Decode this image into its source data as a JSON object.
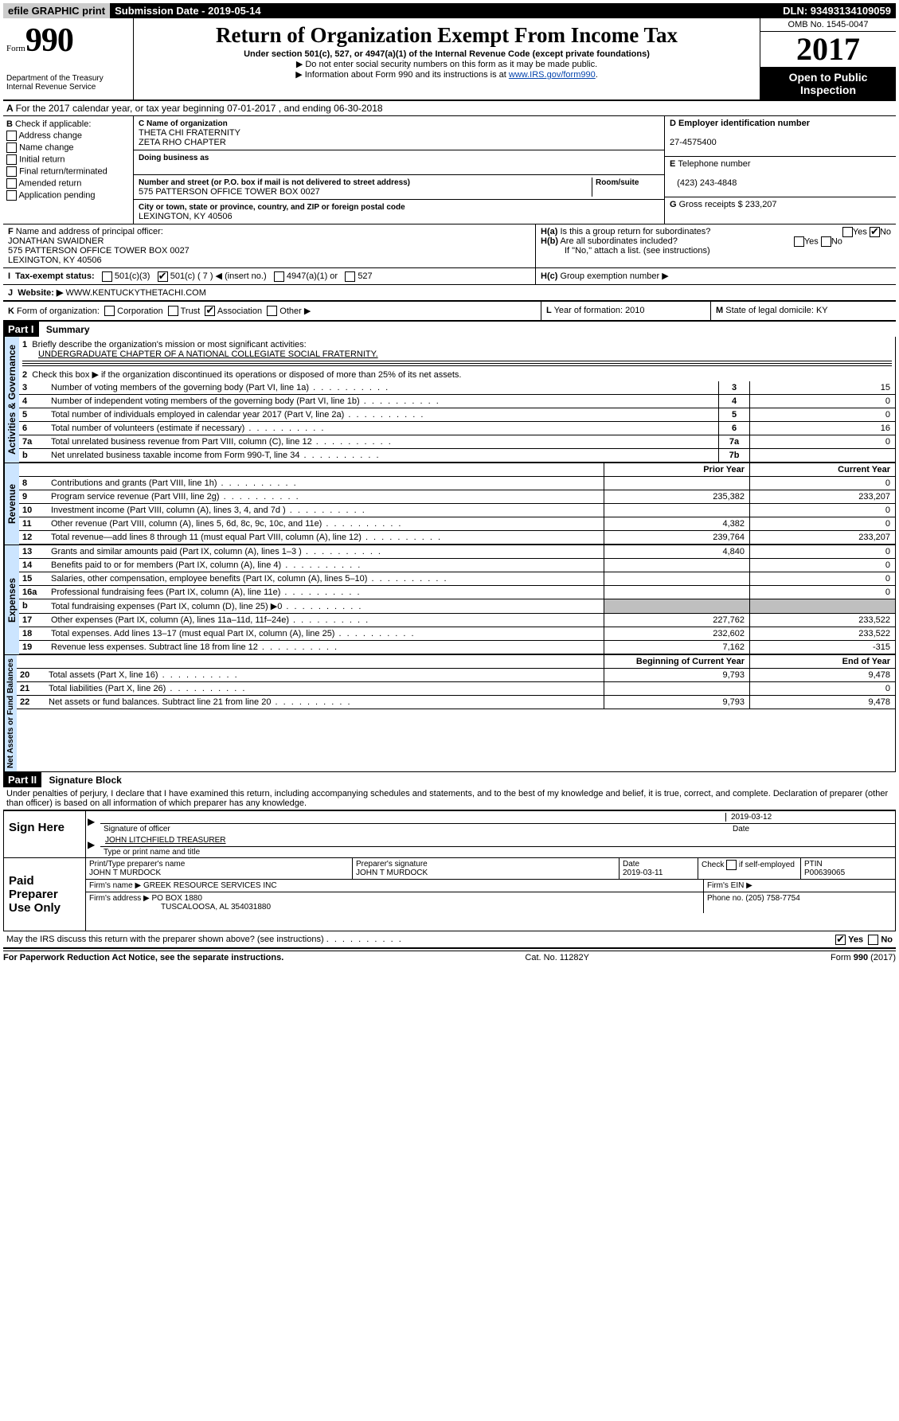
{
  "top": {
    "efile": "efile GRAPHIC print",
    "submission": "Submission Date - 2019-05-14",
    "dln": "DLN: 93493134109059"
  },
  "header": {
    "form_label": "Form",
    "form_number": "990",
    "dept": "Department of the Treasury",
    "irs": "Internal Revenue Service",
    "title": "Return of Organization Exempt From Income Tax",
    "subtitle": "Under section 501(c), 527, or 4947(a)(1) of the Internal Revenue Code (except private foundations)",
    "note1": "Do not enter social security numbers on this form as it may be made public.",
    "note2_pre": "Information about Form 990 and its instructions is at ",
    "note2_link": "www.IRS.gov/form990",
    "omb": "OMB No. 1545-0047",
    "year": "2017",
    "open": "Open to Public Inspection"
  },
  "section_a": "For the 2017 calendar year, or tax year beginning 07-01-2017   , and ending 06-30-2018",
  "box_b": {
    "label": "Check if applicable:",
    "items": [
      "Address change",
      "Name change",
      "Initial return",
      "Final return/terminated",
      "Amended return",
      "Application pending"
    ]
  },
  "box_c": {
    "name_label": "Name of organization",
    "name1": "THETA CHI FRATERNITY",
    "name2": "ZETA RHO CHAPTER",
    "dba_label": "Doing business as",
    "addr_label": "Number and street (or P.O. box if mail is not delivered to street address)",
    "room_label": "Room/suite",
    "addr": "575 PATTERSON OFFICE TOWER BOX 0027",
    "city_label": "City or town, state or province, country, and ZIP or foreign postal code",
    "city": "LEXINGTON, KY  40506"
  },
  "box_d": {
    "label": "Employer identification number",
    "value": "27-4575400"
  },
  "box_e": {
    "label": "Telephone number",
    "value": "(423) 243-4848"
  },
  "box_g": {
    "label": "Gross receipts $",
    "value": "233,207"
  },
  "box_f": {
    "label": "Name and address of principal officer:",
    "name": "JONATHAN SWAIDNER",
    "addr": "575 PATTERSON OFFICE TOWER BOX 0027",
    "city": "LEXINGTON, KY  40506"
  },
  "box_h": {
    "a": "Is this a group return for subordinates?",
    "b": "Are all subordinates included?",
    "note": "If \"No,\" attach a list. (see instructions)",
    "c": "Group exemption number ▶"
  },
  "box_i": {
    "label": "Tax-exempt status:",
    "opts": [
      "501(c)(3)",
      "501(c) ( 7 ) ◀ (insert no.)",
      "4947(a)(1) or",
      "527"
    ]
  },
  "box_j": {
    "label": "Website: ▶",
    "value": "WWW.KENTUCKYTHETACHI.COM"
  },
  "box_k": {
    "label": "Form of organization:",
    "opts": [
      "Corporation",
      "Trust",
      "Association",
      "Other ▶"
    ]
  },
  "box_l": {
    "label": "Year of formation:",
    "value": "2010"
  },
  "box_m": {
    "label": "State of legal domicile:",
    "value": "KY"
  },
  "parts": {
    "p1": {
      "num": "Part I",
      "title": "Summary"
    },
    "p2": {
      "num": "Part II",
      "title": "Signature Block"
    }
  },
  "vtabs": {
    "gov": "Activities & Governance",
    "rev": "Revenue",
    "exp": "Expenses",
    "net": "Net Assets or Fund Balances"
  },
  "summary": {
    "line1_label": "Briefly describe the organization's mission or most significant activities:",
    "line1_value": "UNDERGRADUATE CHAPTER OF A NATIONAL COLLEGIATE SOCIAL FRATERNITY.",
    "line2": "Check this box ▶        if the organization discontinued its operations or disposed of more than 25% of its net assets.",
    "lines_single": [
      {
        "n": "3",
        "d": "Number of voting members of the governing body (Part VI, line 1a)",
        "box": "3",
        "v": "15"
      },
      {
        "n": "4",
        "d": "Number of independent voting members of the governing body (Part VI, line 1b)",
        "box": "4",
        "v": "0"
      },
      {
        "n": "5",
        "d": "Total number of individuals employed in calendar year 2017 (Part V, line 2a)",
        "box": "5",
        "v": "0"
      },
      {
        "n": "6",
        "d": "Total number of volunteers (estimate if necessary)",
        "box": "6",
        "v": "16"
      },
      {
        "n": "7a",
        "d": "Total unrelated business revenue from Part VIII, column (C), line 12",
        "box": "7a",
        "v": "0"
      },
      {
        "n": "b",
        "d": "Net unrelated business taxable income from Form 990-T, line 34",
        "box": "7b",
        "v": ""
      }
    ],
    "col_headers": {
      "prior": "Prior Year",
      "current": "Current Year",
      "begin": "Beginning of Current Year",
      "end": "End of Year"
    },
    "revenue": [
      {
        "n": "8",
        "d": "Contributions and grants (Part VIII, line 1h)",
        "p": "",
        "c": "0"
      },
      {
        "n": "9",
        "d": "Program service revenue (Part VIII, line 2g)",
        "p": "235,382",
        "c": "233,207"
      },
      {
        "n": "10",
        "d": "Investment income (Part VIII, column (A), lines 3, 4, and 7d )",
        "p": "",
        "c": "0"
      },
      {
        "n": "11",
        "d": "Other revenue (Part VIII, column (A), lines 5, 6d, 8c, 9c, 10c, and 11e)",
        "p": "4,382",
        "c": "0"
      },
      {
        "n": "12",
        "d": "Total revenue—add lines 8 through 11 (must equal Part VIII, column (A), line 12)",
        "p": "239,764",
        "c": "233,207"
      }
    ],
    "expenses": [
      {
        "n": "13",
        "d": "Grants and similar amounts paid (Part IX, column (A), lines 1–3 )",
        "p": "4,840",
        "c": "0"
      },
      {
        "n": "14",
        "d": "Benefits paid to or for members (Part IX, column (A), line 4)",
        "p": "",
        "c": "0"
      },
      {
        "n": "15",
        "d": "Salaries, other compensation, employee benefits (Part IX, column (A), lines 5–10)",
        "p": "",
        "c": "0"
      },
      {
        "n": "16a",
        "d": "Professional fundraising fees (Part IX, column (A), line 11e)",
        "p": "",
        "c": "0"
      },
      {
        "n": "b",
        "d": "Total fundraising expenses (Part IX, column (D), line 25) ▶0",
        "p": "grey",
        "c": "grey"
      },
      {
        "n": "17",
        "d": "Other expenses (Part IX, column (A), lines 11a–11d, 11f–24e)",
        "p": "227,762",
        "c": "233,522"
      },
      {
        "n": "18",
        "d": "Total expenses. Add lines 13–17 (must equal Part IX, column (A), line 25)",
        "p": "232,602",
        "c": "233,522"
      },
      {
        "n": "19",
        "d": "Revenue less expenses. Subtract line 18 from line 12",
        "p": "7,162",
        "c": "-315"
      }
    ],
    "netassets": [
      {
        "n": "20",
        "d": "Total assets (Part X, line 16)",
        "p": "9,793",
        "c": "9,478"
      },
      {
        "n": "21",
        "d": "Total liabilities (Part X, line 26)",
        "p": "",
        "c": "0"
      },
      {
        "n": "22",
        "d": "Net assets or fund balances. Subtract line 21 from line 20",
        "p": "9,793",
        "c": "9,478"
      }
    ]
  },
  "sig": {
    "declaration": "Under penalties of perjury, I declare that I have examined this return, including accompanying schedules and statements, and to the best of my knowledge and belief, it is true, correct, and complete. Declaration of preparer (other than officer) is based on all information of which preparer has any knowledge.",
    "sign_here": "Sign Here",
    "sig_officer": "Signature of officer",
    "date1": "2019-03-12",
    "date_label": "Date",
    "name_title": "JOHN LITCHFIELD TREASURER",
    "name_title_label": "Type or print name and title",
    "paid": "Paid Preparer Use Only",
    "prep_name_label": "Print/Type preparer's name",
    "prep_name": "JOHN T MURDOCK",
    "prep_sig_label": "Preparer's signature",
    "prep_sig": "JOHN T MURDOCK",
    "date2_label": "Date",
    "date2": "2019-03-11",
    "check_self": "Check        if self-employed",
    "ptin_label": "PTIN",
    "ptin": "P00639065",
    "firm_name_label": "Firm's name    ▶",
    "firm_name": "GREEK RESOURCE SERVICES INC",
    "firm_ein_label": "Firm's EIN ▶",
    "firm_addr_label": "Firm's address ▶",
    "firm_addr1": "PO BOX 1880",
    "firm_addr2": "TUSCALOOSA, AL  354031880",
    "phone_label": "Phone no.",
    "phone": "(205) 758-7754",
    "discuss": "May the IRS discuss this return with the preparer shown above? (see instructions)"
  },
  "footer": {
    "paperwork": "For Paperwork Reduction Act Notice, see the separate instructions.",
    "cat": "Cat. No. 11282Y",
    "form": "Form 990 (2017)"
  }
}
